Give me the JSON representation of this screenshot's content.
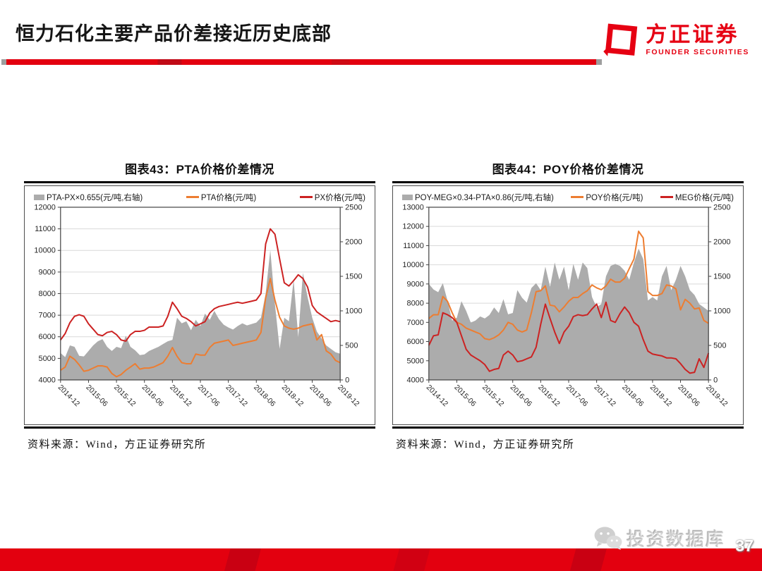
{
  "header": {
    "title": "恒力石化主要产品价差接近历史底部",
    "logo": {
      "cn": "方正证券",
      "en": "FOUNDER SECURITIES"
    }
  },
  "figures": [
    {
      "title": "图表43：PTA价格价差情况",
      "source": "资料来源：Wind，方正证券研究所"
    },
    {
      "title": "图表44：POY价格价差情况",
      "source": "资料来源：Wind，方正证券研究所"
    }
  ],
  "footer": {
    "watermark": "投资数据库",
    "page": "37"
  },
  "colors": {
    "brand_red": "#e60012",
    "line_orange": "#ED7D31",
    "line_red": "#CC2222",
    "area_gray": "#ACACAC",
    "gridline": "#d9d9d9"
  },
  "chart_data": [
    {
      "type": "area",
      "title": "图表43：PTA价格价差情况",
      "x_frequency": "monthly",
      "x_start": "2014-12",
      "x_end": "2019-12",
      "x_tick_labels": [
        "2014-12",
        "2015-06",
        "2015-12",
        "2016-06",
        "2016-12",
        "2017-06",
        "2017-12",
        "2018-06",
        "2018-12",
        "2019-06",
        "2019-12"
      ],
      "left_axis": {
        "min": 4000,
        "max": 12000,
        "step": 1000
      },
      "right_axis": {
        "min": 0,
        "max": 2500,
        "step": 500
      },
      "grid": "horizontal",
      "legend_position": "top",
      "series": [
        {
          "name": "PTA-PX×0.655(元/吨,右轴)",
          "type": "area",
          "axis": "right",
          "color": "#ACACAC",
          "values": [
            390,
            330,
            500,
            480,
            350,
            340,
            420,
            500,
            560,
            590,
            480,
            420,
            480,
            460,
            640,
            480,
            430,
            360,
            370,
            420,
            450,
            480,
            520,
            560,
            580,
            900,
            820,
            850,
            720,
            870,
            780,
            960,
            870,
            1000,
            880,
            800,
            760,
            730,
            780,
            820,
            790,
            810,
            830,
            900,
            1250,
            1880,
            1100,
            450,
            900,
            850,
            1450,
            620,
            1550,
            1200,
            900,
            700,
            600,
            500,
            450,
            400,
            380
          ]
        },
        {
          "name": "PTA价格(元/吨)",
          "type": "line",
          "axis": "left",
          "color": "#ED7D31",
          "values": [
            4450,
            4600,
            5100,
            4950,
            4700,
            4400,
            4450,
            4550,
            4650,
            4650,
            4600,
            4300,
            4150,
            4250,
            4450,
            4600,
            4750,
            4500,
            4550,
            4550,
            4600,
            4700,
            4800,
            5100,
            5500,
            5100,
            4800,
            4750,
            4750,
            5200,
            5150,
            5150,
            5500,
            5700,
            5750,
            5800,
            5850,
            5600,
            5650,
            5700,
            5750,
            5800,
            5850,
            6200,
            7800,
            8700,
            7700,
            6900,
            6500,
            6400,
            6350,
            6400,
            6500,
            6550,
            6600,
            5850,
            6100,
            5350,
            5200,
            4900,
            4800
          ]
        },
        {
          "name": "PX价格(元/吨)",
          "type": "line",
          "axis": "left",
          "color": "#CC2222",
          "values": [
            5850,
            6150,
            6650,
            6950,
            7020,
            6950,
            6600,
            6350,
            6100,
            6050,
            6200,
            6250,
            6100,
            5850,
            5800,
            6100,
            6250,
            6250,
            6300,
            6450,
            6450,
            6450,
            6500,
            6950,
            7600,
            7300,
            6950,
            6850,
            6700,
            6500,
            6600,
            6700,
            7100,
            7300,
            7400,
            7450,
            7500,
            7550,
            7600,
            7550,
            7600,
            7650,
            7700,
            8000,
            10300,
            11000,
            10750,
            9600,
            8500,
            8350,
            8600,
            8870,
            8700,
            8300,
            7450,
            7150,
            7000,
            6850,
            6700,
            6750,
            6700
          ]
        }
      ]
    },
    {
      "type": "area",
      "title": "图表44：POY价格价差情况",
      "x_frequency": "monthly",
      "x_start": "2014-12",
      "x_end": "2019-12",
      "x_tick_labels": [
        "2014-12",
        "2015-06",
        "2015-12",
        "2016-06",
        "2016-12",
        "2017-06",
        "2017-12",
        "2018-06",
        "2018-12",
        "2019-06",
        "2019-12"
      ],
      "left_axis": {
        "min": 4000,
        "max": 13000,
        "step": 1000
      },
      "right_axis": {
        "min": 0,
        "max": 2500,
        "step": 500
      },
      "grid": "horizontal",
      "legend_position": "top",
      "series": [
        {
          "name": "POY-MEG×0.34-PTA×0.86(元/吨,右轴)",
          "type": "area",
          "axis": "right",
          "color": "#ACACAC",
          "values": [
            1390,
            1310,
            1270,
            1400,
            1150,
            860,
            900,
            1140,
            1000,
            830,
            860,
            920,
            890,
            940,
            1050,
            970,
            1170,
            950,
            970,
            1300,
            1190,
            1120,
            1330,
            1400,
            1300,
            1640,
            1350,
            1700,
            1450,
            1640,
            1300,
            1680,
            1450,
            1700,
            1620,
            1200,
            1050,
            1100,
            1500,
            1650,
            1680,
            1650,
            1580,
            1450,
            1700,
            1900,
            1750,
            1150,
            1200,
            1150,
            1500,
            1650,
            1300,
            1450,
            1650,
            1500,
            1300,
            1230,
            1100,
            1050,
            1000
          ]
        },
        {
          "name": "POY价格(元/吨)",
          "type": "line",
          "axis": "left",
          "color": "#ED7D31",
          "values": [
            7200,
            7400,
            7400,
            8350,
            8100,
            7500,
            7000,
            6900,
            6700,
            6600,
            6500,
            6400,
            6150,
            6100,
            6200,
            6350,
            6600,
            7000,
            6900,
            6600,
            6500,
            6600,
            7500,
            8600,
            8650,
            8900,
            7900,
            7850,
            7550,
            7800,
            8100,
            8300,
            8300,
            8500,
            8650,
            8950,
            8800,
            8700,
            8900,
            9250,
            9100,
            9100,
            9300,
            9800,
            10300,
            11750,
            11400,
            8600,
            8400,
            8400,
            8500,
            8950,
            8900,
            8750,
            7650,
            8200,
            8000,
            7700,
            7750,
            7100,
            6950
          ]
        },
        {
          "name": "MEG价格(元/吨)",
          "type": "line",
          "axis": "left",
          "color": "#CC2222",
          "values": [
            5800,
            6300,
            6350,
            7500,
            7400,
            7250,
            7000,
            6300,
            5600,
            5300,
            5150,
            5000,
            4800,
            4450,
            4550,
            4600,
            5300,
            5500,
            5300,
            4950,
            5000,
            5100,
            5200,
            5700,
            6900,
            7950,
            7200,
            6500,
            5900,
            6500,
            6800,
            7300,
            7400,
            7350,
            7400,
            7700,
            7950,
            7250,
            8050,
            7100,
            7000,
            7450,
            7800,
            7500,
            7000,
            6800,
            6100,
            5500,
            5350,
            5300,
            5250,
            5150,
            5150,
            5100,
            4850,
            4550,
            4350,
            4400,
            5100,
            4650,
            5400
          ]
        }
      ]
    }
  ]
}
